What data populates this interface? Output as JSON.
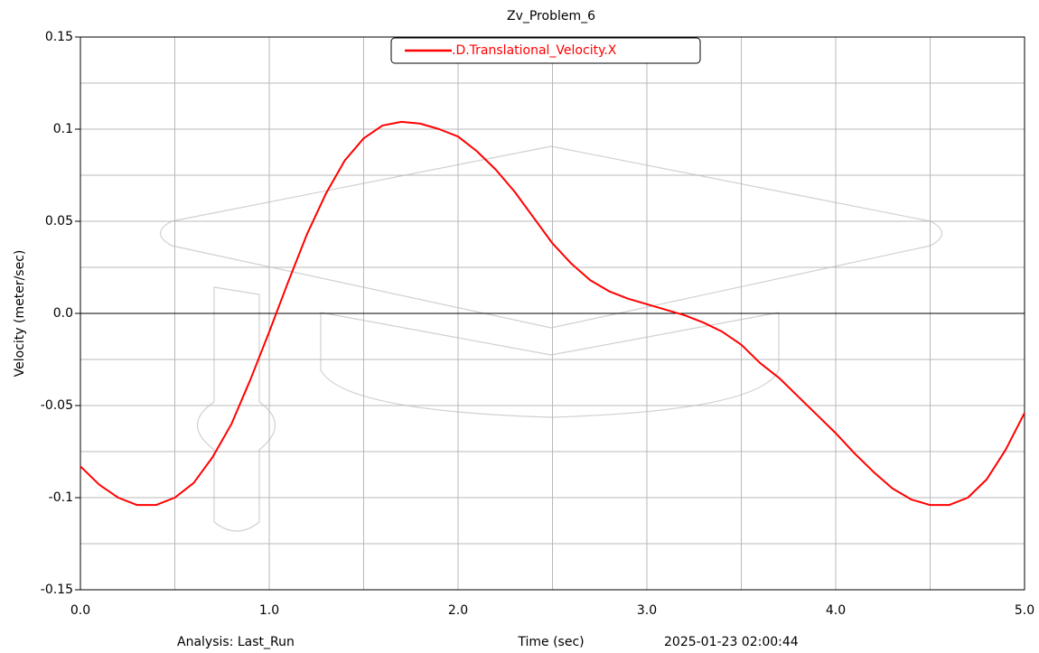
{
  "chart_data": {
    "type": "line",
    "title": "Zv_Problem_6",
    "x_label": "Time (sec)",
    "y_label": "Velocity (meter/sec)",
    "footer_left": "Analysis:  Last_Run",
    "footer_right": "2025-01-23 02:00:44",
    "x": [
      0.0,
      0.1,
      0.2,
      0.3,
      0.4,
      0.5,
      0.6,
      0.7,
      0.8,
      0.9,
      1.0,
      1.1,
      1.2,
      1.3,
      1.4,
      1.5,
      1.6,
      1.7,
      1.8,
      1.9,
      2.0,
      2.1,
      2.2,
      2.3,
      2.4,
      2.5,
      2.6,
      2.7,
      2.8,
      2.9,
      3.0,
      3.1,
      3.2,
      3.3,
      3.4,
      3.5,
      3.6,
      3.7,
      3.8,
      3.9,
      4.0,
      4.1,
      4.2,
      4.3,
      4.4,
      4.5,
      4.6,
      4.7,
      4.8,
      4.9,
      5.0
    ],
    "series": [
      {
        "name": ".D.Translational_Velocity.X",
        "color": "#ff0000",
        "values": [
          -0.083,
          -0.093,
          -0.1,
          -0.104,
          -0.104,
          -0.1,
          -0.092,
          -0.078,
          -0.06,
          -0.036,
          -0.01,
          0.017,
          0.043,
          0.065,
          0.083,
          0.095,
          0.102,
          0.104,
          0.103,
          0.1,
          0.096,
          0.088,
          0.078,
          0.066,
          0.052,
          0.038,
          0.027,
          0.018,
          0.012,
          0.008,
          0.005,
          0.002,
          -0.001,
          -0.005,
          -0.01,
          -0.017,
          -0.027,
          -0.035,
          -0.045,
          -0.055,
          -0.065,
          -0.076,
          -0.086,
          -0.095,
          -0.101,
          -0.104,
          -0.104,
          -0.1,
          -0.09,
          -0.074,
          -0.054
        ]
      }
    ],
    "xlim": [
      0,
      5
    ],
    "ylim": [
      -0.15,
      0.15
    ],
    "xticks": [
      {
        "value": 0,
        "label": "0.0"
      },
      {
        "value": 1,
        "label": "1.0"
      },
      {
        "value": 2,
        "label": "2.0"
      },
      {
        "value": 3,
        "label": "3.0"
      },
      {
        "value": 4,
        "label": "4.0"
      },
      {
        "value": 5,
        "label": "5.0"
      }
    ],
    "yticks": [
      -0.15,
      -0.1,
      -0.05,
      {
        "value": 0,
        "label": "0.0"
      },
      0.05,
      0.1,
      0.15
    ],
    "grid": true,
    "legend": "top"
  }
}
